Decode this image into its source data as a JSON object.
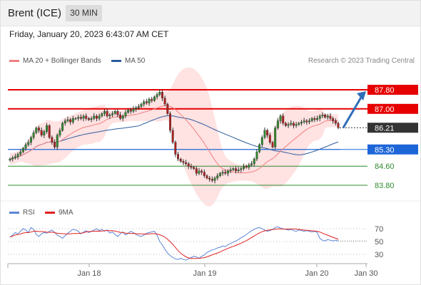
{
  "header": {
    "title": "Brent (ICE)",
    "timeframe": "30 MIN"
  },
  "datetime": "Friday, January 20, 2023 6:43:07 AM CET",
  "legend": {
    "ma20": {
      "label": "MA 20 + Bollinger Bands",
      "color": "#f08080"
    },
    "ma50": {
      "label": "MA 50",
      "color": "#2b5c9e"
    },
    "credit": "Research © 2023 Trading Central"
  },
  "rsi_legend": {
    "rsi": {
      "label": "RSI",
      "color": "#5b86d6"
    },
    "ma": {
      "label": "9MA",
      "color": "#e02020"
    }
  },
  "chart_data": [
    {
      "type": "candlestick",
      "ylim": [
        83.5,
        88.0
      ],
      "x_ticks": [
        "Jan 18",
        "Jan 19",
        "Jan 20",
        "Jan 30"
      ],
      "levels": [
        {
          "value": "87.80",
          "y": 87.8,
          "color": "#e60000",
          "kind": "resistance"
        },
        {
          "value": "87.00",
          "y": 87.0,
          "color": "#e60000",
          "kind": "resistance"
        },
        {
          "value": "86.21",
          "y": 86.21,
          "color": "#333333",
          "kind": "last"
        },
        {
          "value": "85.30",
          "y": 85.3,
          "color": "#1e66d8",
          "kind": "pivot"
        },
        {
          "value": "84.60",
          "y": 84.6,
          "color": "#2e8b2e",
          "kind": "support"
        },
        {
          "value": "83.80",
          "y": 83.8,
          "color": "#2e8b2e",
          "kind": "support"
        }
      ],
      "close": [
        84.9,
        84.95,
        85.0,
        85.1,
        85.2,
        85.35,
        85.5,
        85.6,
        85.8,
        86.0,
        86.2,
        86.1,
        85.9,
        86.05,
        86.3,
        85.8,
        85.6,
        85.4,
        85.9,
        86.1,
        86.4,
        86.5,
        86.55,
        86.45,
        86.6,
        86.6,
        86.65,
        86.6,
        86.7,
        86.6,
        86.55,
        86.6,
        86.7,
        86.6,
        86.7,
        86.8,
        86.9,
        86.7,
        86.75,
        86.8,
        86.9,
        86.75,
        86.6,
        86.7,
        86.85,
        86.95,
        86.9,
        87.0,
        87.05,
        87.1,
        87.2,
        87.3,
        87.25,
        87.4,
        87.35,
        87.5,
        87.6,
        87.7,
        87.45,
        87.2,
        86.8,
        86.1,
        85.6,
        85.1,
        84.9,
        84.8,
        84.75,
        84.7,
        84.6,
        84.55,
        84.5,
        84.3,
        84.4,
        84.35,
        84.2,
        84.1,
        84.05,
        84.0,
        84.1,
        84.2,
        84.3,
        84.35,
        84.3,
        84.4,
        84.45,
        84.5,
        84.4,
        84.45,
        84.5,
        84.6,
        84.55,
        84.65,
        84.7,
        84.9,
        85.2,
        85.5,
        85.8,
        86.1,
        85.9,
        85.6,
        85.4,
        86.2,
        86.5,
        86.7,
        86.4,
        86.3,
        86.35,
        86.4,
        86.3,
        86.35,
        86.4,
        86.45,
        86.5,
        86.45,
        86.5,
        86.6,
        86.55,
        86.6,
        86.7,
        86.75,
        86.65,
        86.7,
        86.6,
        86.5,
        86.4,
        86.21
      ],
      "ma20_color": "#f08080",
      "band_color": "#ffd8d8",
      "ma50_color": "#2b5c9e",
      "forecast_arrow": {
        "from": 86.21,
        "to": 87.8,
        "color": "#2f6db8"
      }
    },
    {
      "type": "line",
      "title": "RSI",
      "yticks": [
        70,
        50,
        30
      ],
      "ylim": [
        15,
        85
      ],
      "rsi": [
        57,
        60,
        64,
        62,
        66,
        70,
        68,
        64,
        72,
        69,
        61,
        58,
        62,
        64,
        63,
        66,
        68,
        64,
        60,
        58,
        55,
        59,
        63,
        66,
        69,
        68,
        66,
        62,
        65,
        67,
        64,
        66,
        68,
        70,
        67,
        69,
        66,
        68,
        63,
        65,
        61,
        58,
        62,
        65,
        60,
        63,
        66,
        64,
        61,
        59,
        58,
        60,
        63,
        64,
        65,
        66,
        60,
        50,
        45,
        38,
        32,
        28,
        25,
        23,
        22,
        24,
        22,
        21,
        23,
        25,
        27,
        26,
        24,
        27,
        29,
        33,
        35,
        37,
        38,
        40,
        41,
        43,
        42,
        45,
        47,
        49,
        51,
        53,
        56,
        58,
        61,
        64,
        67,
        69,
        71,
        72,
        70,
        68,
        66,
        67,
        69,
        72,
        73,
        71,
        70,
        69,
        68,
        69,
        67,
        66,
        68,
        67,
        66,
        67,
        66,
        65,
        66,
        64,
        55,
        52,
        51,
        53,
        52,
        51,
        52,
        51
      ],
      "rsi_color": "#5b86d6",
      "ma_color": "#e02020"
    }
  ]
}
